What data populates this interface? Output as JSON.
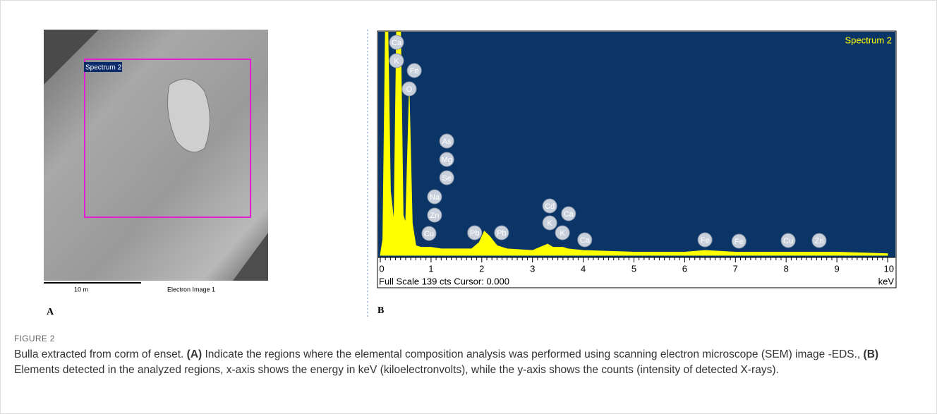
{
  "figure": {
    "label": "FIGURE 2",
    "caption": [
      {
        "text": "Bulla extracted from corm of enset. ",
        "bold": false
      },
      {
        "text": "(A)",
        "bold": true
      },
      {
        "text": " Indicate the regions where the elemental composition analysis was performed using scanning electron microscope (SEM) image -EDS., ",
        "bold": false
      },
      {
        "text": "(B)",
        "bold": true
      },
      {
        "text": " Elements detected in the analyzed regions, x-axis shows the energy in keV (kiloelectronvolts), while the y-axis shows the counts (intensity of detected X-rays).",
        "bold": false
      }
    ],
    "panel_a": {
      "letter": "A",
      "region_label": "Spectrum 2",
      "scale_bar": "10 m",
      "image_label": "Electron Image 1"
    },
    "panel_b": {
      "letter": "B"
    }
  },
  "chart_data": {
    "type": "area",
    "title": "Spectrum 2",
    "footer": "Full Scale 139 cts Cursor: 0.000",
    "x_unit": "keV",
    "x": [
      0,
      0.05,
      0.1,
      0.15,
      0.2,
      0.27,
      0.32,
      0.4,
      0.45,
      0.5,
      0.57,
      0.63,
      0.7,
      0.8,
      1.0,
      1.2,
      1.4,
      1.6,
      1.8,
      1.95,
      2.05,
      2.15,
      2.3,
      2.5,
      3.0,
      3.3,
      3.4,
      3.6,
      3.7,
      4.0,
      5,
      6,
      6.4,
      7,
      8,
      9,
      10
    ],
    "series": [
      {
        "name": "Spectrum 2",
        "color": "#ffff00",
        "values": [
          0,
          10,
          139,
          139,
          40,
          20,
          139,
          139,
          25,
          20,
          100,
          20,
          6,
          5,
          5,
          4,
          4,
          4,
          4,
          8,
          15,
          12,
          6,
          4,
          3,
          7,
          5,
          5,
          4,
          3,
          2,
          2,
          3,
          2,
          2,
          2,
          1
        ]
      }
    ],
    "xlim": [
      0,
      10
    ],
    "xticks": [
      0,
      1,
      2,
      3,
      4,
      5,
      6,
      7,
      8,
      9,
      10
    ],
    "ylim": [
      0,
      139
    ],
    "background": "#0a3566",
    "peak_labels": [
      {
        "text": "Ca",
        "x": 0.32
      },
      {
        "text": "K",
        "x": 0.32
      },
      {
        "text": "Fe",
        "x": 0.67
      },
      {
        "text": "O",
        "x": 0.57
      },
      {
        "text": "As",
        "x": 1.31
      },
      {
        "text": "Mg",
        "x": 1.31
      },
      {
        "text": "Se",
        "x": 1.31
      },
      {
        "text": "Na",
        "x": 1.07
      },
      {
        "text": "Zn",
        "x": 1.07
      },
      {
        "text": "Cu",
        "x": 0.96
      },
      {
        "text": "Pb",
        "x": 1.86
      },
      {
        "text": "Pb",
        "x": 2.39
      },
      {
        "text": "Cd",
        "x": 3.34
      },
      {
        "text": "K",
        "x": 3.34
      },
      {
        "text": "Ca",
        "x": 3.71
      },
      {
        "text": "K",
        "x": 3.59
      },
      {
        "text": "Ca",
        "x": 4.03
      },
      {
        "text": "Fe",
        "x": 6.4
      },
      {
        "text": "Fe",
        "x": 7.07
      },
      {
        "text": "Cu",
        "x": 8.04
      },
      {
        "text": "Zn",
        "x": 8.65
      }
    ]
  }
}
